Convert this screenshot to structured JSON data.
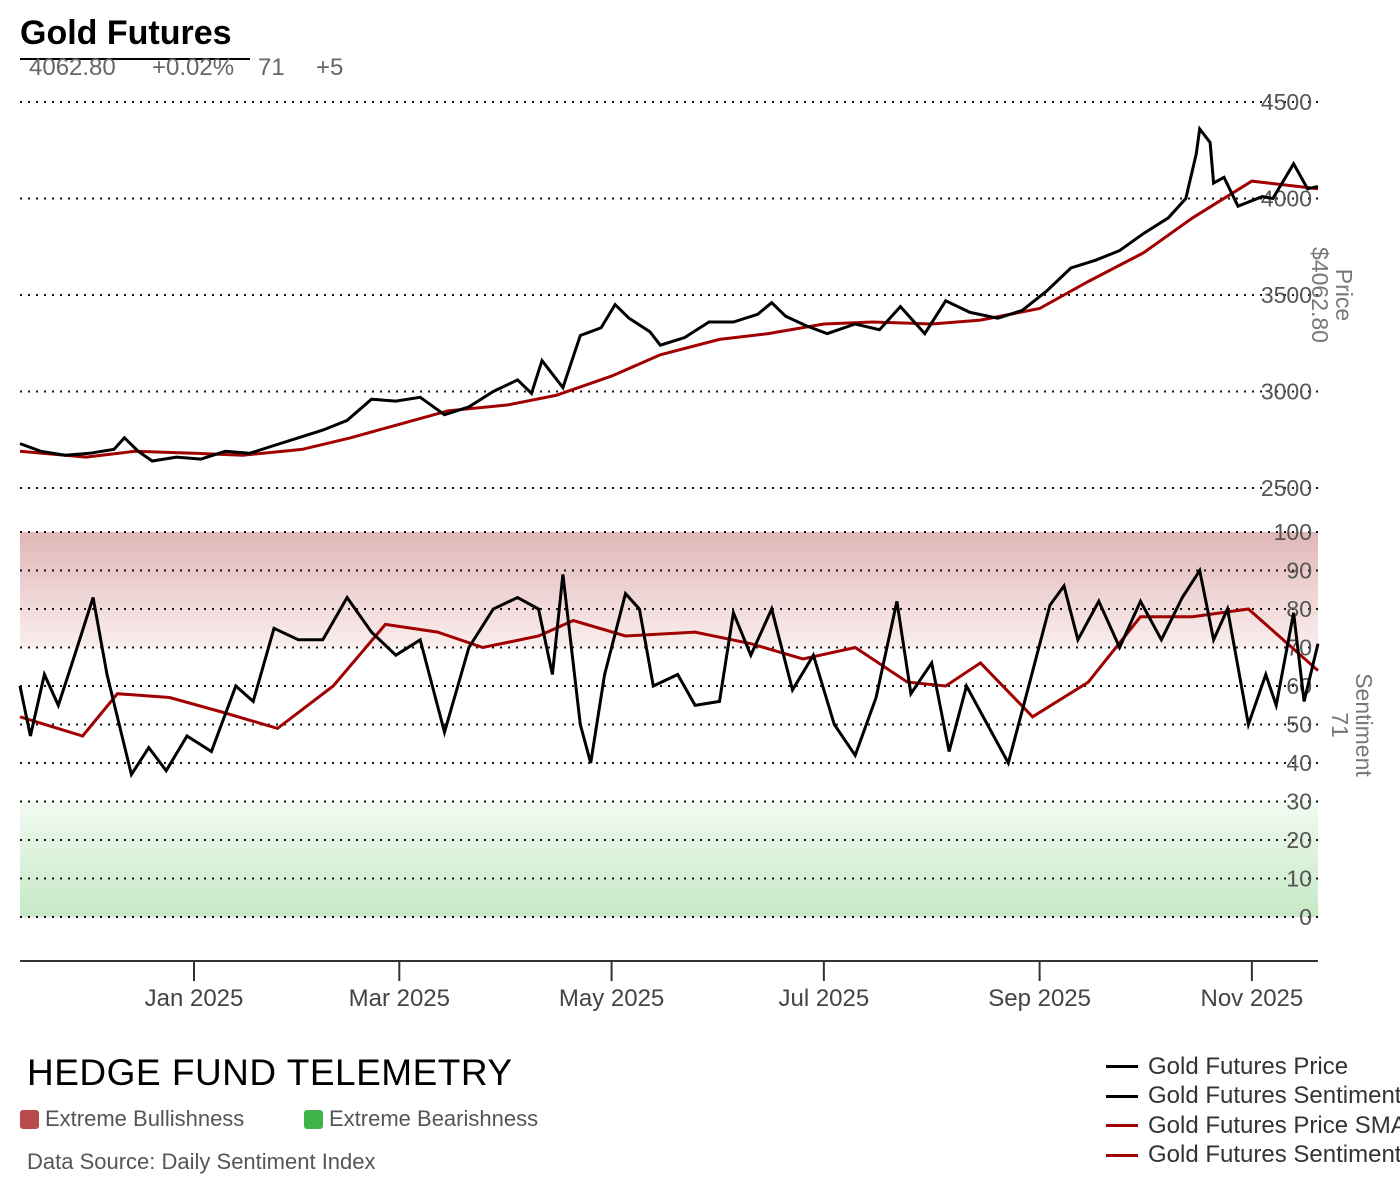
{
  "header": {
    "title": "Gold Futures",
    "price": "4062.80",
    "change_pct": "+0.02%",
    "sentiment": "71",
    "sentiment_change": "+5"
  },
  "brand": "HEDGE FUND TELEMETRY",
  "zones": {
    "bull_label": "Extreme Bullishness",
    "bull_color": "#b94a4a",
    "bear_label": "Extreme Bearishness",
    "bear_color": "#3fb44a"
  },
  "source": "Data Source: Daily Sentiment Index",
  "legend": [
    {
      "label": "Gold Futures Price",
      "color": "#000000"
    },
    {
      "label": "Gold Futures Sentiment",
      "color": "#000000"
    },
    {
      "label": "Gold Futures Price SMA",
      "color": "#a00000"
    },
    {
      "label": "Gold Futures Sentiment SMA",
      "color": "#a00000"
    }
  ],
  "chart_data": {
    "type": "line",
    "x_start": "2024-11-12",
    "x_end": "2025-11-20",
    "x_ticks": [
      {
        "label": "Jan 2025",
        "date": "2025-01-01"
      },
      {
        "label": "Mar 2025",
        "date": "2025-03-01"
      },
      {
        "label": "May 2025",
        "date": "2025-05-01"
      },
      {
        "label": "Jul 2025",
        "date": "2025-07-01"
      },
      {
        "label": "Sep 2025",
        "date": "2025-09-01"
      },
      {
        "label": "Nov 2025",
        "date": "2025-11-01"
      }
    ],
    "price_panel": {
      "axis_label": "Price",
      "axis_value": "$4062.80",
      "ylim": [
        2500,
        4500
      ],
      "ticks": [
        "2500",
        "3000",
        "3500",
        "4000",
        "4500"
      ],
      "price": [
        [
          "2024-11-12",
          2730
        ],
        [
          "2024-11-18",
          2690
        ],
        [
          "2024-11-25",
          2670
        ],
        [
          "2024-12-02",
          2680
        ],
        [
          "2024-12-09",
          2700
        ],
        [
          "2024-12-12",
          2760
        ],
        [
          "2024-12-16",
          2690
        ],
        [
          "2024-12-20",
          2640
        ],
        [
          "2024-12-27",
          2660
        ],
        [
          "2025-01-03",
          2650
        ],
        [
          "2025-01-10",
          2690
        ],
        [
          "2025-01-17",
          2680
        ],
        [
          "2025-01-24",
          2720
        ],
        [
          "2025-01-31",
          2760
        ],
        [
          "2025-02-07",
          2800
        ],
        [
          "2025-02-14",
          2850
        ],
        [
          "2025-02-21",
          2960
        ],
        [
          "2025-02-28",
          2950
        ],
        [
          "2025-03-07",
          2970
        ],
        [
          "2025-03-14",
          2880
        ],
        [
          "2025-03-21",
          2920
        ],
        [
          "2025-03-28",
          3000
        ],
        [
          "2025-04-04",
          3060
        ],
        [
          "2025-04-08",
          2990
        ],
        [
          "2025-04-11",
          3160
        ],
        [
          "2025-04-17",
          3020
        ],
        [
          "2025-04-22",
          3290
        ],
        [
          "2025-04-28",
          3330
        ],
        [
          "2025-05-02",
          3450
        ],
        [
          "2025-05-06",
          3380
        ],
        [
          "2025-05-12",
          3310
        ],
        [
          "2025-05-15",
          3240
        ],
        [
          "2025-05-22",
          3280
        ],
        [
          "2025-05-29",
          3360
        ],
        [
          "2025-06-05",
          3360
        ],
        [
          "2025-06-12",
          3400
        ],
        [
          "2025-06-16",
          3460
        ],
        [
          "2025-06-20",
          3390
        ],
        [
          "2025-06-26",
          3340
        ],
        [
          "2025-07-02",
          3300
        ],
        [
          "2025-07-10",
          3350
        ],
        [
          "2025-07-17",
          3320
        ],
        [
          "2025-07-23",
          3440
        ],
        [
          "2025-07-30",
          3300
        ],
        [
          "2025-08-05",
          3470
        ],
        [
          "2025-08-12",
          3410
        ],
        [
          "2025-08-20",
          3380
        ],
        [
          "2025-08-27",
          3420
        ],
        [
          "2025-09-03",
          3520
        ],
        [
          "2025-09-10",
          3640
        ],
        [
          "2025-09-17",
          3680
        ],
        [
          "2025-09-24",
          3730
        ],
        [
          "2025-10-01",
          3820
        ],
        [
          "2025-10-08",
          3900
        ],
        [
          "2025-10-13",
          4000
        ],
        [
          "2025-10-16",
          4230
        ],
        [
          "2025-10-17",
          4360
        ],
        [
          "2025-10-20",
          4290
        ],
        [
          "2025-10-21",
          4080
        ],
        [
          "2025-10-24",
          4110
        ],
        [
          "2025-10-28",
          3960
        ],
        [
          "2025-11-04",
          4010
        ],
        [
          "2025-11-07",
          4000
        ],
        [
          "2025-11-13",
          4180
        ],
        [
          "2025-11-17",
          4050
        ],
        [
          "2025-11-20",
          4062.8
        ]
      ],
      "sma": [
        [
          "2024-11-12",
          2690
        ],
        [
          "2024-12-01",
          2660
        ],
        [
          "2024-12-15",
          2690
        ],
        [
          "2025-01-01",
          2680
        ],
        [
          "2025-01-15",
          2670
        ],
        [
          "2025-02-01",
          2700
        ],
        [
          "2025-02-15",
          2760
        ],
        [
          "2025-03-01",
          2830
        ],
        [
          "2025-03-15",
          2900
        ],
        [
          "2025-04-01",
          2930
        ],
        [
          "2025-04-15",
          2980
        ],
        [
          "2025-05-01",
          3080
        ],
        [
          "2025-05-15",
          3190
        ],
        [
          "2025-06-01",
          3270
        ],
        [
          "2025-06-15",
          3300
        ],
        [
          "2025-07-01",
          3350
        ],
        [
          "2025-07-15",
          3360
        ],
        [
          "2025-08-01",
          3350
        ],
        [
          "2025-08-15",
          3370
        ],
        [
          "2025-09-01",
          3430
        ],
        [
          "2025-09-15",
          3570
        ],
        [
          "2025-10-01",
          3720
        ],
        [
          "2025-10-15",
          3900
        ],
        [
          "2025-11-01",
          4090
        ],
        [
          "2025-11-20",
          4050
        ]
      ]
    },
    "sentiment_panel": {
      "axis_label": "Sentiment",
      "axis_value": "71",
      "ylim": [
        0,
        100
      ],
      "ticks": [
        "0",
        "10",
        "20",
        "30",
        "40",
        "50",
        "60",
        "70",
        "80",
        "90",
        "100"
      ],
      "bull_zone": [
        70,
        100
      ],
      "bear_zone": [
        0,
        30
      ],
      "sentiment": [
        [
          "2024-11-12",
          60
        ],
        [
          "2024-11-15",
          47
        ],
        [
          "2024-11-19",
          63
        ],
        [
          "2024-11-23",
          55
        ],
        [
          "2024-11-27",
          66
        ],
        [
          "2024-12-03",
          83
        ],
        [
          "2024-12-07",
          63
        ],
        [
          "2024-12-14",
          37
        ],
        [
          "2024-12-19",
          44
        ],
        [
          "2024-12-24",
          38
        ],
        [
          "2024-12-30",
          47
        ],
        [
          "2025-01-06",
          43
        ],
        [
          "2025-01-13",
          60
        ],
        [
          "2025-01-18",
          56
        ],
        [
          "2025-01-24",
          75
        ],
        [
          "2025-01-31",
          72
        ],
        [
          "2025-02-07",
          72
        ],
        [
          "2025-02-14",
          83
        ],
        [
          "2025-02-21",
          74
        ],
        [
          "2025-02-28",
          68
        ],
        [
          "2025-03-07",
          72
        ],
        [
          "2025-03-14",
          48
        ],
        [
          "2025-03-21",
          70
        ],
        [
          "2025-03-28",
          80
        ],
        [
          "2025-04-04",
          83
        ],
        [
          "2025-04-10",
          80
        ],
        [
          "2025-04-14",
          63
        ],
        [
          "2025-04-17",
          89
        ],
        [
          "2025-04-22",
          50
        ],
        [
          "2025-04-25",
          40
        ],
        [
          "2025-04-29",
          63
        ],
        [
          "2025-05-05",
          84
        ],
        [
          "2025-05-09",
          80
        ],
        [
          "2025-05-13",
          60
        ],
        [
          "2025-05-20",
          63
        ],
        [
          "2025-05-25",
          55
        ],
        [
          "2025-06-01",
          56
        ],
        [
          "2025-06-05",
          79
        ],
        [
          "2025-06-10",
          68
        ],
        [
          "2025-06-16",
          80
        ],
        [
          "2025-06-22",
          59
        ],
        [
          "2025-06-28",
          68
        ],
        [
          "2025-07-04",
          50
        ],
        [
          "2025-07-10",
          42
        ],
        [
          "2025-07-16",
          57
        ],
        [
          "2025-07-22",
          82
        ],
        [
          "2025-07-26",
          58
        ],
        [
          "2025-08-01",
          66
        ],
        [
          "2025-08-06",
          43
        ],
        [
          "2025-08-11",
          60
        ],
        [
          "2025-08-17",
          50
        ],
        [
          "2025-08-23",
          40
        ],
        [
          "2025-08-28",
          57
        ],
        [
          "2025-09-04",
          81
        ],
        [
          "2025-09-08",
          86
        ],
        [
          "2025-09-12",
          72
        ],
        [
          "2025-09-18",
          82
        ],
        [
          "2025-09-24",
          70
        ],
        [
          "2025-09-30",
          82
        ],
        [
          "2025-10-06",
          72
        ],
        [
          "2025-10-12",
          83
        ],
        [
          "2025-10-17",
          90
        ],
        [
          "2025-10-21",
          72
        ],
        [
          "2025-10-25",
          80
        ],
        [
          "2025-10-31",
          50
        ],
        [
          "2025-11-05",
          63
        ],
        [
          "2025-11-08",
          55
        ],
        [
          "2025-11-13",
          79
        ],
        [
          "2025-11-16",
          56
        ],
        [
          "2025-11-20",
          71
        ]
      ],
      "sma": [
        [
          "2024-11-12",
          52
        ],
        [
          "2024-11-30",
          47
        ],
        [
          "2024-12-10",
          58
        ],
        [
          "2024-12-25",
          57
        ],
        [
          "2025-01-10",
          53
        ],
        [
          "2025-01-25",
          49
        ],
        [
          "2025-02-10",
          60
        ],
        [
          "2025-02-25",
          76
        ],
        [
          "2025-03-12",
          74
        ],
        [
          "2025-03-25",
          70
        ],
        [
          "2025-04-10",
          73
        ],
        [
          "2025-04-20",
          77
        ],
        [
          "2025-05-05",
          73
        ],
        [
          "2025-05-25",
          74
        ],
        [
          "2025-06-10",
          71
        ],
        [
          "2025-06-25",
          67
        ],
        [
          "2025-07-10",
          70
        ],
        [
          "2025-07-25",
          61
        ],
        [
          "2025-08-05",
          60
        ],
        [
          "2025-08-15",
          66
        ],
        [
          "2025-08-30",
          52
        ],
        [
          "2025-09-15",
          61
        ],
        [
          "2025-09-30",
          78
        ],
        [
          "2025-10-15",
          78
        ],
        [
          "2025-10-31",
          80
        ],
        [
          "2025-11-20",
          64
        ]
      ]
    }
  }
}
